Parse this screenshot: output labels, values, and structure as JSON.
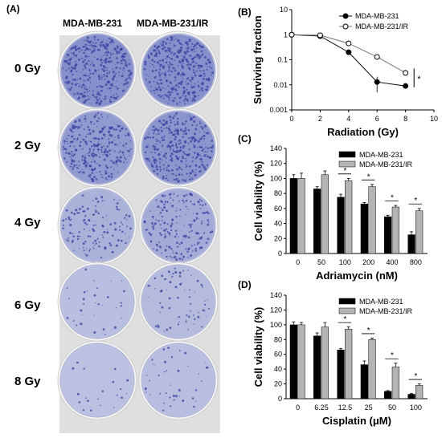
{
  "panels": {
    "a_letter": "(A)",
    "b_letter": "(B)",
    "c_letter": "(C)",
    "d_letter": "(D)"
  },
  "panel_a": {
    "columns": [
      "MDA-MB-231",
      "MDA-MB-231/IR"
    ],
    "rows": [
      "0 Gy",
      "2 Gy",
      "4 Gy",
      "6 Gy",
      "8 Gy"
    ],
    "colony_density": [
      [
        0.95,
        0.95
      ],
      [
        0.75,
        0.85
      ],
      [
        0.3,
        0.45
      ],
      [
        0.06,
        0.15
      ],
      [
        0.03,
        0.08
      ]
    ],
    "dish_color": "#7b86c6",
    "stain_color": "#3a3fa0"
  },
  "chart_data": [
    {
      "type": "line",
      "panel": "B",
      "xlabel": "Radiation (Gy)",
      "ylabel": "Surviving fraction",
      "yscale": "log",
      "xlim": [
        0,
        10
      ],
      "ylim": [
        0.001,
        10
      ],
      "x_ticks": [
        "0",
        "2",
        "4",
        "6",
        "8",
        "10"
      ],
      "y_ticks": [
        "0.001",
        "0.01",
        "0.1",
        "1",
        "10"
      ],
      "series": [
        {
          "name": "MDA-MB-231",
          "marker": "filled-circle",
          "x": [
            0,
            2,
            4,
            6,
            8
          ],
          "y": [
            1,
            0.88,
            0.2,
            0.013,
            0.009
          ],
          "err": [
            0,
            0.05,
            0.03,
            0.008,
            0.001
          ]
        },
        {
          "name": "MDA-MB-231/IR",
          "marker": "open-circle",
          "x": [
            0,
            2,
            4,
            6,
            8
          ],
          "y": [
            1,
            0.95,
            0.45,
            0.13,
            0.03
          ],
          "err": [
            0,
            0.05,
            0.05,
            0.02,
            0.005
          ]
        }
      ],
      "annotations": [
        "*"
      ],
      "legend": "top-right"
    },
    {
      "type": "bar",
      "panel": "C",
      "xlabel": "Adriamycin (nM)",
      "ylabel": "Cell viability (%)",
      "categories": [
        "0",
        "50",
        "100",
        "200",
        "400",
        "800"
      ],
      "ylim": [
        0,
        140
      ],
      "y_ticks": [
        "0",
        "20",
        "40",
        "60",
        "80",
        "100",
        "120",
        "140"
      ],
      "series": [
        {
          "name": "MDA-MB-231",
          "color": "#000000",
          "values": [
            100,
            86,
            75,
            66,
            49,
            25
          ],
          "err": [
            5,
            3,
            4,
            2,
            2,
            4
          ]
        },
        {
          "name": "MDA-MB-231/IR",
          "color": "#b4b4b4",
          "values": [
            100,
            105,
            97,
            89,
            62,
            57
          ],
          "err": [
            7,
            5,
            3,
            3,
            2,
            3
          ]
        }
      ],
      "significance": [
        "",
        "",
        "*",
        "*",
        "*",
        "*"
      ],
      "legend": "top-right"
    },
    {
      "type": "bar",
      "panel": "D",
      "xlabel": "Cisplatin (μM)",
      "ylabel": "Cell viability (%)",
      "categories": [
        "0",
        "6.25",
        "12.5",
        "25",
        "50",
        "100"
      ],
      "ylim": [
        0,
        140
      ],
      "y_ticks": [
        "0",
        "20",
        "40",
        "60",
        "80",
        "100",
        "120",
        "140"
      ],
      "series": [
        {
          "name": "MDA-MB-231",
          "color": "#000000",
          "values": [
            100,
            85,
            66,
            46,
            10,
            6
          ],
          "err": [
            4,
            4,
            2,
            5,
            1,
            1
          ]
        },
        {
          "name": "MDA-MB-231/IR",
          "color": "#b4b4b4",
          "values": [
            100,
            97,
            94,
            80,
            43,
            18
          ],
          "err": [
            3,
            6,
            3,
            2,
            5,
            2
          ]
        }
      ],
      "significance": [
        "",
        "",
        "*",
        "*",
        "*",
        "*"
      ],
      "legend": "top-right"
    }
  ]
}
